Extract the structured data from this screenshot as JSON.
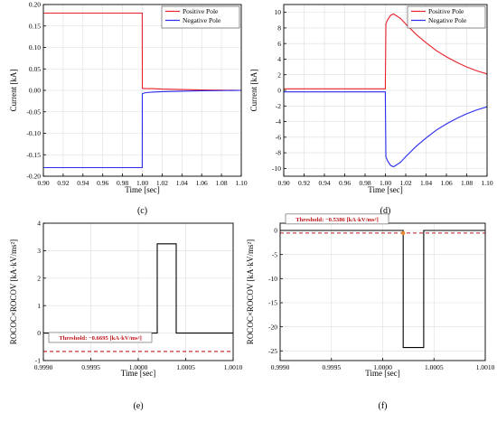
{
  "chart_data": [
    {
      "panel": "(c)",
      "type": "line",
      "xlabel": "Time [sec]",
      "ylabel": "Current [kA]",
      "xlim": [
        0.9,
        1.1
      ],
      "ylim": [
        -0.2,
        0.2
      ],
      "xticks": [
        "0.90",
        "0.92",
        "0.94",
        "0.96",
        "0.98",
        "1.00",
        "1.02",
        "1.04",
        "1.06",
        "1.08",
        "1.10"
      ],
      "yticks": [
        "-0.20",
        "-0.15",
        "-0.10",
        "-0.05",
        "0.00",
        "0.05",
        "0.10",
        "0.15",
        "0.20"
      ],
      "legend": "top-right",
      "series": [
        {
          "name": "Positive Pole",
          "color": "#e8202a",
          "x": [
            0.9,
            0.92,
            0.94,
            0.96,
            0.98,
            0.9999,
            1.0,
            1.002,
            1.005,
            1.01,
            1.02,
            1.04,
            1.06,
            1.08,
            1.1
          ],
          "y": [
            0.18,
            0.18,
            0.18,
            0.18,
            0.18,
            0.18,
            0.005,
            0.004,
            0.004,
            0.004,
            0.003,
            0.002,
            0.001,
            0.0005,
            0.0
          ]
        },
        {
          "name": "Negative Pole",
          "color": "#2a2aee",
          "x": [
            0.9,
            0.92,
            0.94,
            0.96,
            0.98,
            0.9999,
            1.0,
            1.002,
            1.005,
            1.01,
            1.02,
            1.04,
            1.06,
            1.08,
            1.1
          ],
          "y": [
            -0.18,
            -0.18,
            -0.18,
            -0.18,
            -0.18,
            -0.18,
            -0.008,
            -0.006,
            -0.005,
            -0.004,
            -0.003,
            -0.002,
            -0.001,
            -0.0005,
            0.0
          ]
        }
      ]
    },
    {
      "panel": "(d)",
      "type": "line",
      "xlabel": "Time [sec]",
      "ylabel": "Current [kA]",
      "xlim": [
        0.9,
        1.1
      ],
      "ylim": [
        -11,
        11
      ],
      "xticks": [
        "0.90",
        "0.92",
        "0.94",
        "0.96",
        "0.98",
        "1.00",
        "1.02",
        "1.04",
        "1.06",
        "1.08",
        "1.10"
      ],
      "yticks": [
        "-10",
        "-8",
        "-6",
        "-4",
        "-2",
        "0",
        "2",
        "4",
        "6",
        "8",
        "10"
      ],
      "legend": "top-right",
      "series": [
        {
          "name": "Positive Pole",
          "color": "#e8202a",
          "x": [
            0.9,
            0.95,
            0.9999,
            1.0005,
            1.002,
            1.005,
            1.008,
            1.015,
            1.02,
            1.03,
            1.04,
            1.05,
            1.06,
            1.07,
            1.08,
            1.09,
            1.1
          ],
          "y": [
            0.2,
            0.2,
            0.2,
            8.5,
            9.0,
            9.6,
            9.8,
            9.2,
            8.5,
            7.2,
            6.1,
            5.1,
            4.3,
            3.6,
            3.0,
            2.5,
            2.1
          ]
        },
        {
          "name": "Negative Pole",
          "color": "#2a2aee",
          "x": [
            0.9,
            0.95,
            0.9999,
            1.0005,
            1.002,
            1.005,
            1.008,
            1.015,
            1.02,
            1.03,
            1.04,
            1.05,
            1.06,
            1.07,
            1.08,
            1.09,
            1.1
          ],
          "y": [
            -0.2,
            -0.2,
            -0.2,
            -8.5,
            -9.0,
            -9.6,
            -9.8,
            -9.2,
            -8.5,
            -7.2,
            -6.1,
            -5.1,
            -4.3,
            -3.6,
            -3.0,
            -2.5,
            -2.1
          ]
        }
      ]
    },
    {
      "panel": "(e)",
      "type": "line",
      "xlabel": "Time [sec]",
      "ylabel": "ROCOC×ROCOV [kA·kV/ms²]",
      "xlim": [
        0.999,
        1.001
      ],
      "ylim": [
        -1,
        4
      ],
      "xticks": [
        "0.9990",
        "0.9995",
        "1.0000",
        "1.0005",
        "1.0010"
      ],
      "yticks": [
        "-1",
        "0",
        "1",
        "2",
        "3",
        "4"
      ],
      "threshold": {
        "label": "Threshold: −0.6695 [kA·kV/ms²]",
        "value": -0.6695,
        "color": "#c0161c"
      },
      "series": [
        {
          "color": "#000000",
          "x": [
            0.999,
            1.0002,
            1.0002,
            1.0004,
            1.0004,
            1.001
          ],
          "y": [
            0,
            0,
            3.25,
            3.25,
            0,
            0
          ]
        }
      ]
    },
    {
      "panel": "(f)",
      "type": "line",
      "xlabel": "Time [sec]",
      "ylabel": "ROCOC×ROCOV [kA·kV/ms²]",
      "xlim": [
        0.999,
        1.001
      ],
      "ylim": [
        -27,
        1.5
      ],
      "xticks": [
        "0.9990",
        "0.9995",
        "1.0000",
        "1.0005",
        "1.0010"
      ],
      "yticks": [
        "-25",
        "-20",
        "-15",
        "-10",
        "-5",
        "0"
      ],
      "threshold": {
        "label": "Threshold: −0.5386 [kA·kV/ms²]",
        "value": -0.5386,
        "color": "#c0161c"
      },
      "marker": {
        "x": 1.0002,
        "y": -0.5386,
        "color": "#e8862a"
      },
      "series": [
        {
          "color": "#000000",
          "x": [
            0.999,
            1.0002,
            1.0002,
            1.0004,
            1.0004,
            1.001
          ],
          "y": [
            0,
            0,
            -24.3,
            -24.3,
            0,
            0
          ]
        }
      ]
    }
  ]
}
